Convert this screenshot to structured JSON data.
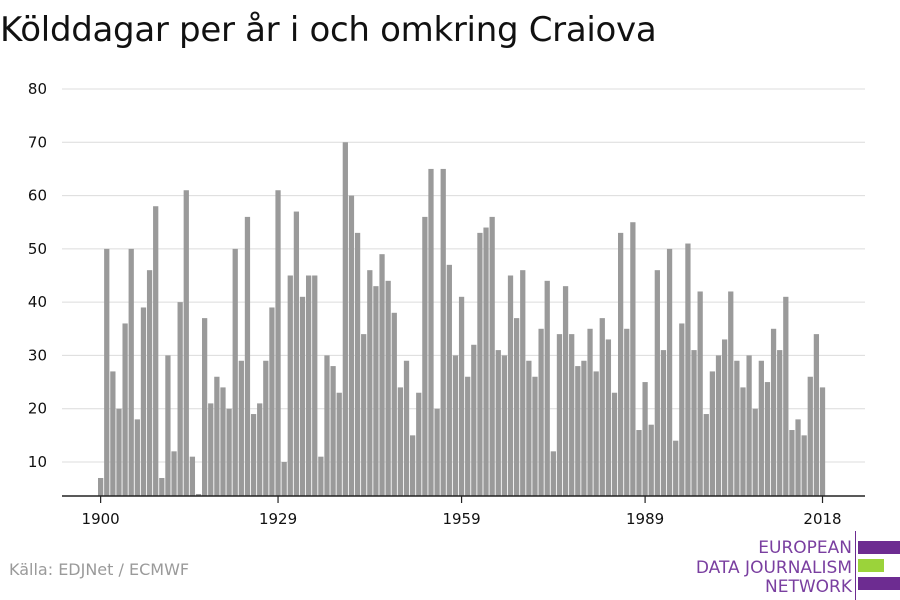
{
  "title": "Kölddagar per år i och omkring Craiova",
  "source": "Källa: EDJNet / ECMWF",
  "logo": {
    "lines": [
      "EUROPEAN",
      "DATA JOURNALISM",
      "NETWORK"
    ],
    "colors": {
      "purple": "#6d2c91",
      "green": "#9bd33a"
    }
  },
  "chart_data": {
    "type": "bar",
    "title": "Kölddagar per år i och omkring Craiova",
    "xlabel": "",
    "ylabel": "",
    "bar_color": "#9a9a9a",
    "grid": true,
    "ylim": [
      3,
      80
    ],
    "yticks": [
      10,
      20,
      30,
      40,
      50,
      60,
      70,
      80
    ],
    "xticks": [
      1900,
      1929,
      1959,
      1989,
      2018
    ],
    "categories": [
      1900,
      1901,
      1902,
      1903,
      1904,
      1905,
      1906,
      1907,
      1908,
      1909,
      1910,
      1911,
      1912,
      1913,
      1914,
      1915,
      1916,
      1917,
      1918,
      1919,
      1920,
      1921,
      1922,
      1923,
      1924,
      1925,
      1926,
      1927,
      1928,
      1929,
      1930,
      1931,
      1932,
      1933,
      1934,
      1935,
      1936,
      1937,
      1938,
      1939,
      1940,
      1941,
      1942,
      1943,
      1944,
      1945,
      1946,
      1947,
      1948,
      1949,
      1950,
      1951,
      1952,
      1953,
      1954,
      1955,
      1956,
      1957,
      1958,
      1959,
      1960,
      1961,
      1962,
      1963,
      1964,
      1965,
      1966,
      1967,
      1968,
      1969,
      1970,
      1971,
      1972,
      1973,
      1974,
      1975,
      1976,
      1977,
      1978,
      1979,
      1980,
      1981,
      1982,
      1983,
      1984,
      1985,
      1986,
      1987,
      1988,
      1989,
      1990,
      1991,
      1992,
      1993,
      1994,
      1995,
      1996,
      1997,
      1998,
      1999,
      2000,
      2001,
      2002,
      2003,
      2004,
      2005,
      2006,
      2007,
      2008,
      2009,
      2010,
      2011,
      2012,
      2013,
      2014,
      2015,
      2016,
      2017,
      2018
    ],
    "values": [
      7,
      50,
      27,
      20,
      36,
      50,
      18,
      39,
      46,
      58,
      7,
      30,
      12,
      40,
      61,
      11,
      4,
      37,
      21,
      26,
      24,
      20,
      50,
      29,
      56,
      19,
      21,
      29,
      39,
      61,
      10,
      45,
      57,
      41,
      45,
      45,
      11,
      30,
      28,
      23,
      70,
      60,
      53,
      34,
      46,
      43,
      49,
      44,
      38,
      24,
      29,
      15,
      23,
      56,
      65,
      20,
      65,
      47,
      30,
      41,
      26,
      32,
      53,
      54,
      56,
      31,
      30,
      45,
      37,
      46,
      29,
      26,
      35,
      44,
      12,
      34,
      43,
      34,
      28,
      29,
      35,
      27,
      37,
      33,
      23,
      53,
      35,
      55,
      16,
      25,
      17,
      46,
      31,
      50,
      14,
      36,
      51,
      31,
      42,
      19,
      27,
      30,
      33,
      42,
      29,
      24,
      30,
      20,
      29,
      25,
      35,
      31,
      41,
      16,
      18,
      15,
      26,
      34,
      24
    ]
  }
}
